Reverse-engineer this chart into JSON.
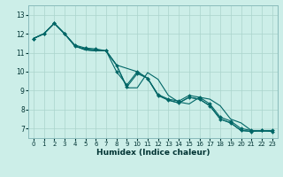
{
  "xlabel": "Humidex (Indice chaleur)",
  "background_color": "#cceee8",
  "grid_color": "#aad4cc",
  "line_color": "#006666",
  "xlim": [
    -0.5,
    23.5
  ],
  "ylim": [
    6.5,
    13.5
  ],
  "xticks": [
    0,
    1,
    2,
    3,
    4,
    5,
    6,
    7,
    8,
    9,
    10,
    11,
    12,
    13,
    14,
    15,
    16,
    17,
    18,
    19,
    20,
    21,
    22,
    23
  ],
  "yticks": [
    7,
    8,
    9,
    10,
    11,
    12,
    13
  ],
  "series": [
    {
      "x": [
        0,
        1,
        2,
        3,
        4,
        5,
        6,
        7,
        8,
        9,
        10,
        11,
        12,
        13,
        14,
        15,
        16,
        17,
        18,
        19,
        20,
        21,
        22,
        23
      ],
      "y": [
        11.75,
        12.0,
        12.55,
        12.0,
        11.4,
        11.25,
        11.2,
        11.1,
        10.35,
        9.2,
        9.9,
        9.65,
        8.75,
        8.5,
        8.35,
        8.65,
        8.55,
        8.2,
        7.5,
        7.3,
        6.9,
        6.85,
        6.9,
        6.85
      ],
      "has_markers": true
    },
    {
      "x": [
        0,
        1,
        2,
        3,
        4,
        5,
        6,
        7,
        8,
        9,
        10,
        11,
        12,
        13,
        14,
        15,
        16,
        17,
        18,
        19,
        20,
        21,
        22,
        23
      ],
      "y": [
        11.75,
        12.0,
        12.55,
        12.0,
        11.35,
        11.15,
        11.1,
        11.1,
        10.35,
        9.15,
        9.15,
        9.95,
        9.6,
        8.75,
        8.4,
        8.3,
        8.65,
        8.55,
        8.2,
        7.5,
        7.3,
        6.9,
        6.85,
        6.9
      ],
      "has_markers": false
    },
    {
      "x": [
        0,
        1,
        2,
        3,
        4,
        5,
        6,
        7,
        8,
        10,
        11,
        12,
        13,
        14,
        15,
        16,
        17,
        18,
        19,
        20,
        21,
        22,
        23
      ],
      "y": [
        11.75,
        12.0,
        12.55,
        12.0,
        11.35,
        11.15,
        11.1,
        11.1,
        10.35,
        10.0,
        9.65,
        8.75,
        8.5,
        8.35,
        8.65,
        8.55,
        8.2,
        7.5,
        7.3,
        6.9,
        6.85,
        6.9,
        6.85
      ],
      "has_markers": false
    },
    {
      "x": [
        0,
        1,
        2,
        3,
        4,
        5,
        6,
        7,
        8,
        9,
        10,
        11,
        12,
        13,
        14,
        15,
        16,
        17,
        18,
        19,
        20,
        21,
        22,
        23
      ],
      "y": [
        11.75,
        12.0,
        12.55,
        12.0,
        11.35,
        11.2,
        11.15,
        11.1,
        10.0,
        9.3,
        10.0,
        9.65,
        8.8,
        8.55,
        8.45,
        8.75,
        8.65,
        8.3,
        7.6,
        7.4,
        7.0,
        6.9,
        6.9,
        6.9
      ],
      "has_markers": true
    }
  ],
  "marker": "D",
  "markersize": 2.0,
  "linewidth": 0.8,
  "xlabel_fontsize": 6.5,
  "tick_fontsize": 5.0
}
